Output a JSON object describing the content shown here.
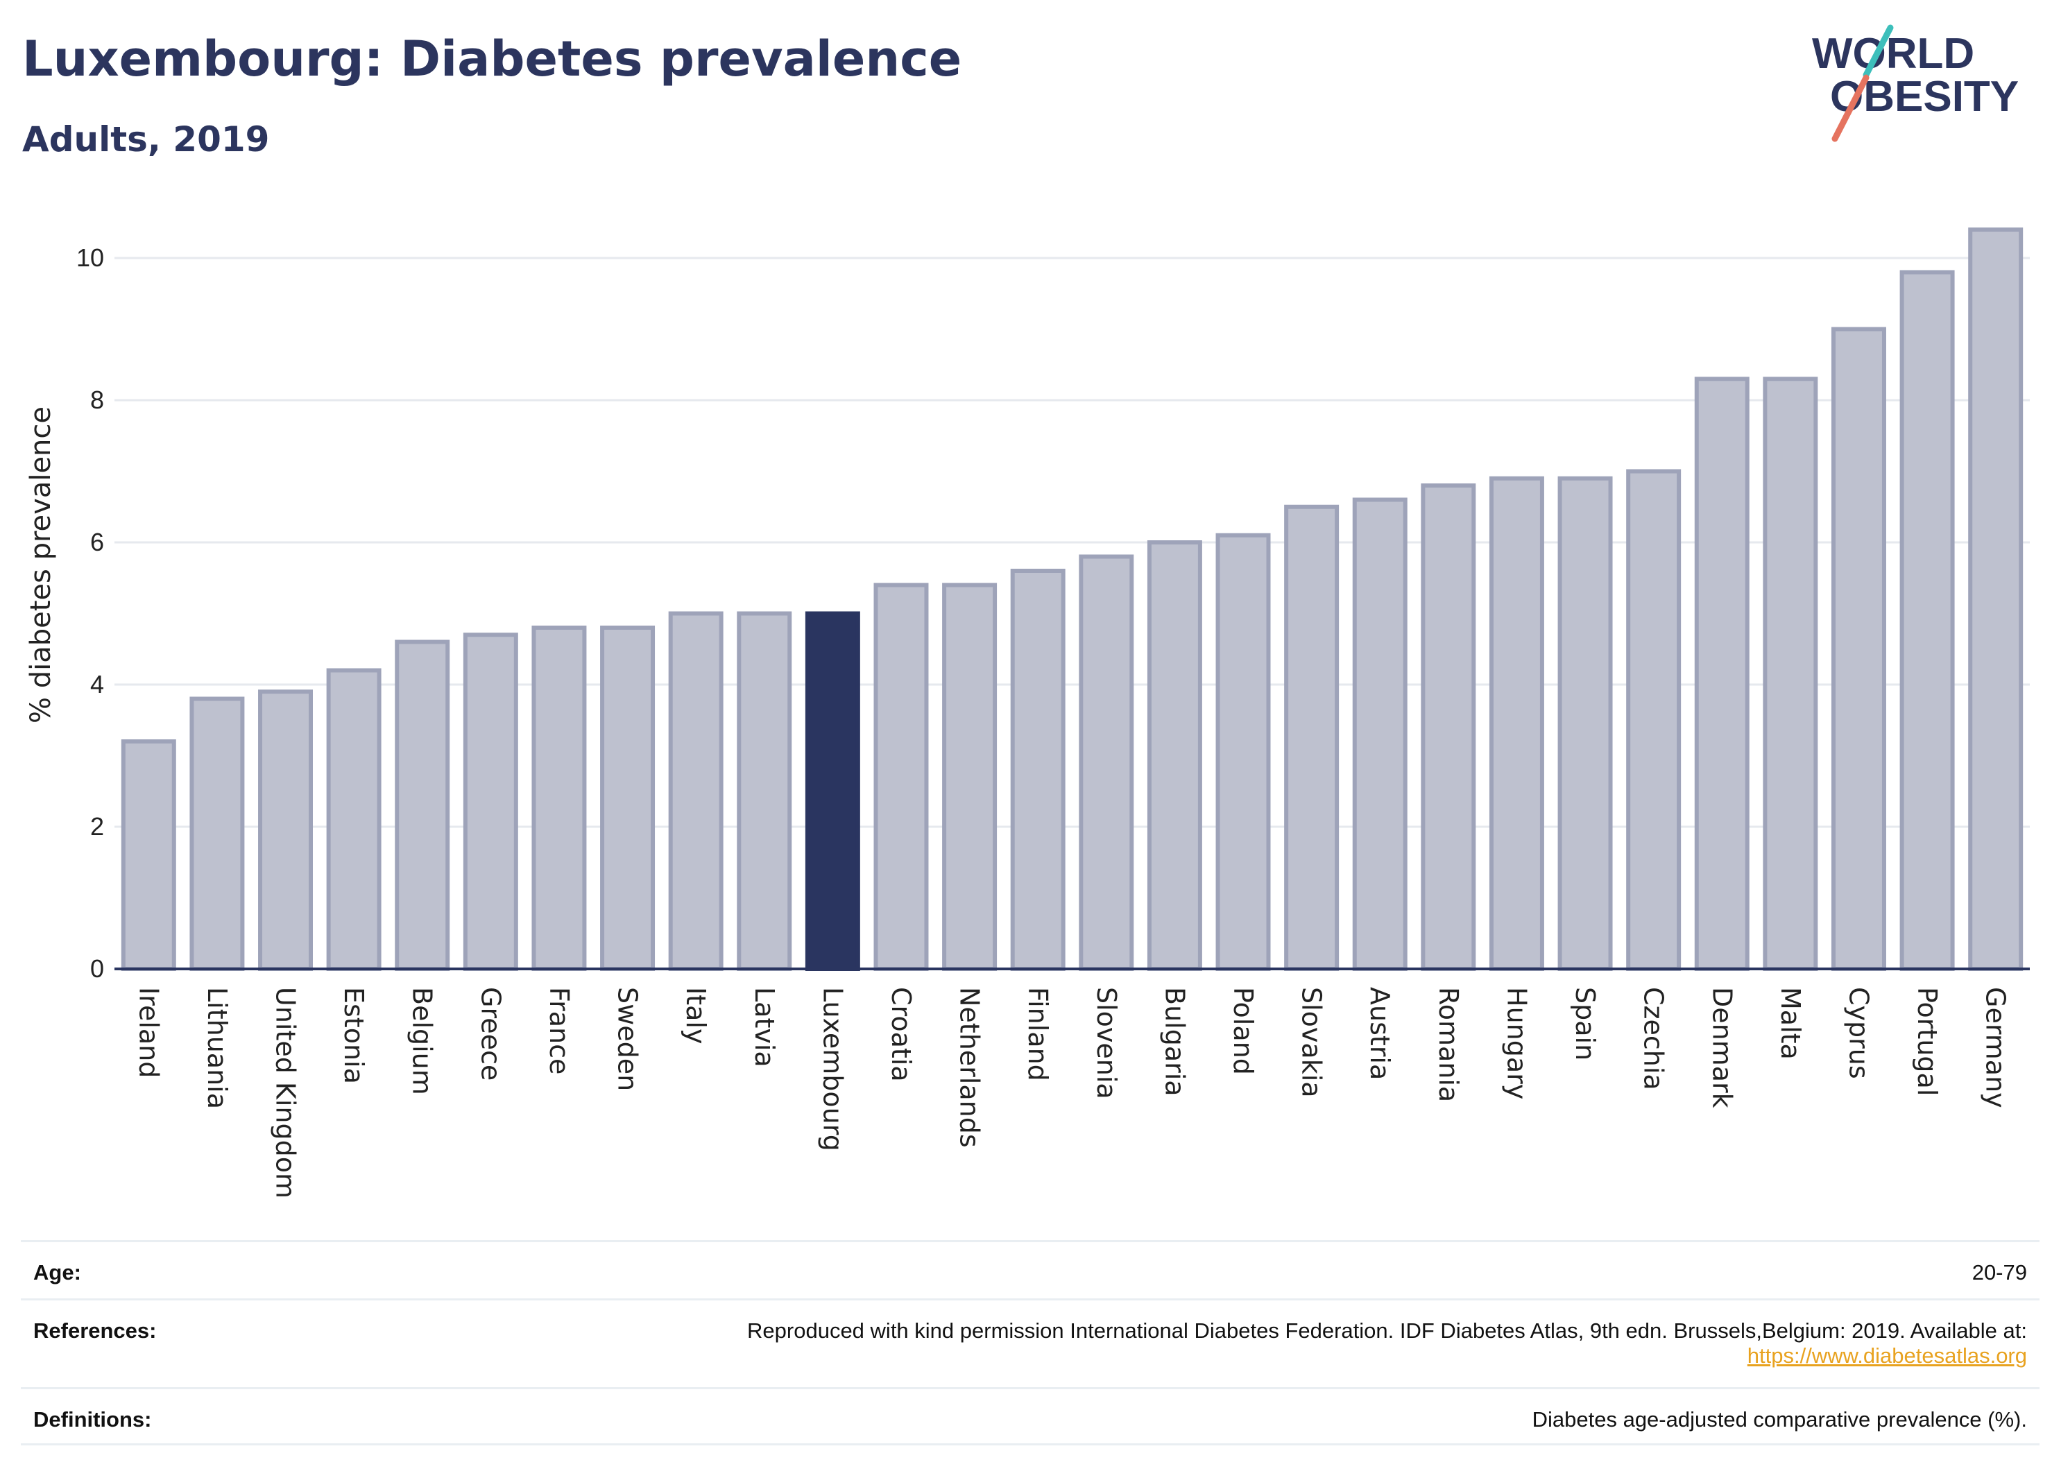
{
  "header": {
    "title": "Luxembourg: Diabetes prevalence",
    "subtitle": "Adults, 2019"
  },
  "logo": {
    "line1": "WORLD",
    "line2": "OBESITY",
    "slash_colors": [
      "#3dbfbb",
      "#e5735f"
    ]
  },
  "chart_data": {
    "type": "bar",
    "ylabel": "% diabetes prevalence",
    "xlabel": "",
    "ylim": [
      0,
      10.8
    ],
    "yticks": [
      0,
      2,
      4,
      6,
      8,
      10
    ],
    "grid": true,
    "highlight": "Luxembourg",
    "colors": {
      "bar": "#bec1cf",
      "bar_edge": "#9ea3b9",
      "highlight": "#2a3560",
      "axis": "#2a3560",
      "grid": "#e6e9ee"
    },
    "categories": [
      "Ireland",
      "Lithuania",
      "United Kingdom",
      "Estonia",
      "Belgium",
      "Greece",
      "France",
      "Sweden",
      "Italy",
      "Latvia",
      "Luxembourg",
      "Croatia",
      "Netherlands",
      "Finland",
      "Slovenia",
      "Bulgaria",
      "Poland",
      "Slovakia",
      "Austria",
      "Romania",
      "Hungary",
      "Spain",
      "Czechia",
      "Denmark",
      "Malta",
      "Cyprus",
      "Portugal",
      "Germany"
    ],
    "values": [
      3.2,
      3.8,
      3.9,
      4.2,
      4.6,
      4.7,
      4.8,
      4.8,
      5.0,
      5.0,
      5.0,
      5.4,
      5.4,
      5.6,
      5.8,
      6.0,
      6.1,
      6.5,
      6.6,
      6.8,
      6.9,
      6.9,
      7.0,
      8.3,
      8.3,
      9.0,
      9.8,
      10.4
    ]
  },
  "footer": {
    "age_label": "Age:",
    "age_value": "20-79",
    "references_label": "References:",
    "references_text": "Reproduced with kind permission International Diabetes Federation. IDF Diabetes Atlas, 9th edn. Brussels,Belgium: 2019. Available at:",
    "references_link": "https://www.diabetesatlas.org",
    "definitions_label": "Definitions:",
    "definitions_value": "Diabetes age-adjusted comparative prevalence (%)."
  }
}
